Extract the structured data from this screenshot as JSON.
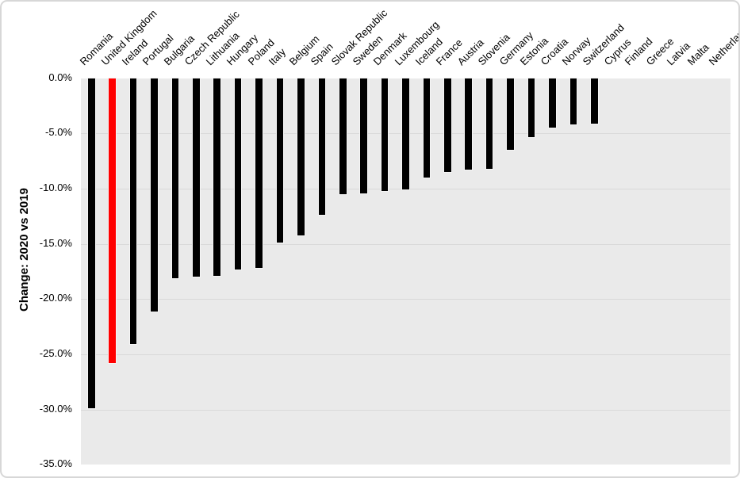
{
  "chart_data": {
    "type": "bar",
    "title": "",
    "xlabel": "",
    "ylabel": "Change: 2020 vs 2019",
    "categories": [
      "Romania",
      "United Kingdom",
      "Ireland",
      "Portugal",
      "Bulgaria",
      "Czech Republic",
      "Lithuania",
      "Hungary",
      "Poland",
      "Italy",
      "Belgium",
      "Spain",
      "Slovak Republic",
      "Sweden",
      "Denmark",
      "Luxembourg",
      "Iceland",
      "France",
      "Austria",
      "Slovenia",
      "Germany",
      "Estonia",
      "Croatia",
      "Norway",
      "Switzerland",
      "Cyprus",
      "Finland",
      "Greece",
      "Latvia",
      "Malta",
      "Netherlands"
    ],
    "values": [
      -29.9,
      -25.8,
      -24.1,
      -21.1,
      -18.1,
      -18.0,
      -17.9,
      -17.3,
      -17.2,
      -14.9,
      -14.2,
      -12.4,
      -10.5,
      -10.4,
      -10.2,
      -10.1,
      -9.0,
      -8.5,
      -8.3,
      -8.2,
      -6.5,
      -5.3,
      -4.5,
      -4.2,
      -4.1,
      null,
      null,
      null,
      null,
      null,
      null
    ],
    "ylim": [
      -35,
      0
    ],
    "yticks": [
      "0.0%",
      "-5.0%",
      "-10.0%",
      "-15.0%",
      "-20.0%",
      "-25.0%",
      "-30.0%",
      "-35.0%"
    ],
    "ytick_values": [
      0,
      -5,
      -10,
      -15,
      -20,
      -25,
      -30,
      -35
    ],
    "grid": true,
    "legend": "none",
    "bar_color": "#000000",
    "highlight_index": 1,
    "highlight_color": "#FF0000",
    "plot_bg": "#EAEAEA",
    "gridline_color": "#D9D9D9",
    "text_color": "#000000"
  }
}
